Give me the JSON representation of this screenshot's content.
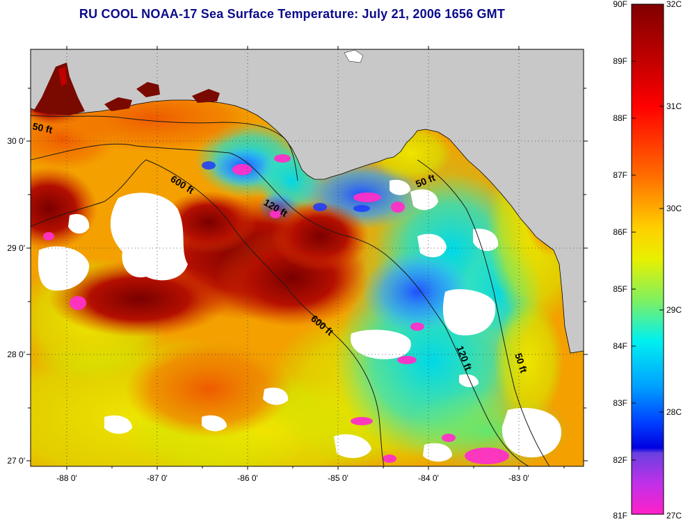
{
  "title": "RU COOL  NOAA-17  Sea Surface Temperature:  July 21, 2006 1656 GMT",
  "y_axis_labels": [
    "30 0'",
    "29 0'",
    "28 0'",
    "27 0'"
  ],
  "x_axis_labels": [
    "-88 0'",
    "-87 0'",
    "-86 0'",
    "-85 0'",
    "-84 0'",
    "-83 0'"
  ],
  "contour_labels": [
    "50 ft",
    "600 ft",
    "120 ft",
    "50 ft",
    "600 ft",
    "120 ft",
    "50 ft"
  ],
  "colorbar": {
    "fahrenheit_labels": [
      "90F",
      "89F",
      "88F",
      "87F",
      "86F",
      "85F",
      "84F",
      "83F",
      "82F",
      "81F"
    ],
    "celsius_labels": [
      "32C",
      "31C",
      "30C",
      "29C",
      "28C",
      "27C"
    ]
  },
  "colors": {
    "title": "#0b0b8a",
    "land": "#c8c8c8",
    "cloud": "#ffffff",
    "hot": "#8a0000",
    "warm": "#ff6a00",
    "mild": "#f5e600",
    "cool": "#00e0e0",
    "cold": "#0020ff",
    "coldest": "#ff20c0"
  }
}
